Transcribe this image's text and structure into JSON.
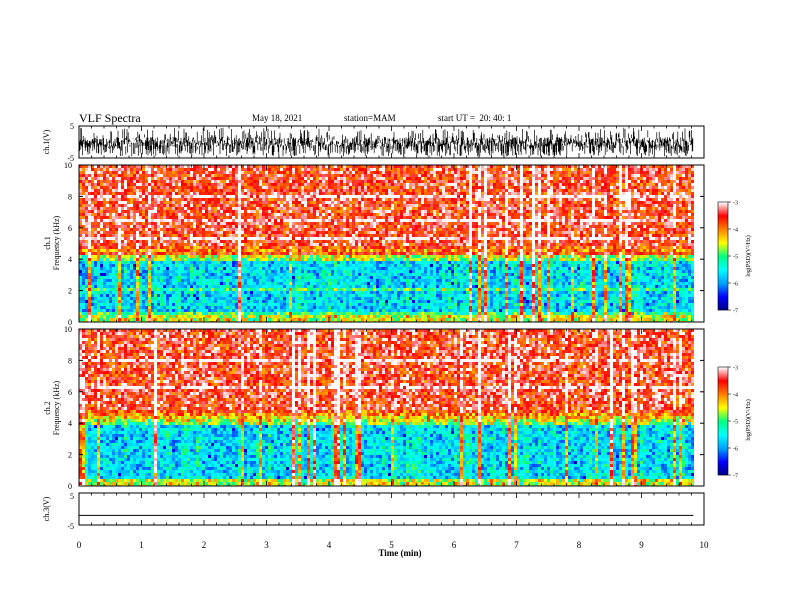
{
  "header": {
    "title": "VLF Spectra",
    "date": "May 18, 2021",
    "station": "station=MAM",
    "start": "start UT =  20: 40: 1"
  },
  "chart_data": [
    {
      "type": "line",
      "ylabel": "ch.1(V)",
      "ylim": [
        -5,
        5
      ],
      "yticks": [
        "5",
        "-5"
      ],
      "description_free": true,
      "series": [
        {
          "values_range": [
            -4.5,
            4.5
          ]
        }
      ]
    },
    {
      "type": "heatmap",
      "ylabel_lines": [
        "ch.1",
        "Frequency (kHz)"
      ],
      "ylim": [
        0,
        10
      ],
      "yticks": [
        "0",
        "2",
        "4",
        "6",
        "8",
        "10"
      ],
      "transition_khz": 4.3,
      "colorbar": {
        "label": "log(PSD)(V²/Hz)",
        "range": [
          -7,
          -3
        ],
        "ticks": [
          "-3",
          "-4",
          "-5",
          "-6",
          "-7"
        ],
        "colors": [
          "#000080",
          "#0000ff",
          "#00a0ff",
          "#00ffff",
          "#00ff80",
          "#ffff00",
          "#ff8000",
          "#ff0000",
          "#ffffff"
        ]
      }
    },
    {
      "type": "heatmap",
      "ylabel_lines": [
        "ch.2",
        "Frequency (kHz)"
      ],
      "ylim": [
        0,
        10
      ],
      "yticks": [
        "0",
        "2",
        "4",
        "6",
        "8",
        "10"
      ],
      "transition_khz": 4.3,
      "colorbar": {
        "label": "log(PSD)(V²/Hz)",
        "range": [
          -7,
          -3
        ],
        "ticks": [
          "-3",
          "-4",
          "-5",
          "-6",
          "-7"
        ],
        "colors": [
          "#000080",
          "#0000ff",
          "#00a0ff",
          "#00ffff",
          "#00ff80",
          "#ffff00",
          "#ff8000",
          "#ff0000",
          "#ffffff"
        ]
      }
    },
    {
      "type": "line",
      "ylabel": "ch.3(V)",
      "ylim": [
        -5,
        5
      ],
      "yticks": [
        "5",
        "-5"
      ],
      "series": [
        {
          "values": [
            -2,
            -2
          ]
        }
      ]
    }
  ],
  "xaxis": {
    "label": "Time (min)",
    "range": [
      0,
      10
    ],
    "ticks": [
      "0",
      "1",
      "2",
      "3",
      "4",
      "5",
      "6",
      "7",
      "8",
      "9",
      "10"
    ],
    "data_end_min": 9.83
  }
}
